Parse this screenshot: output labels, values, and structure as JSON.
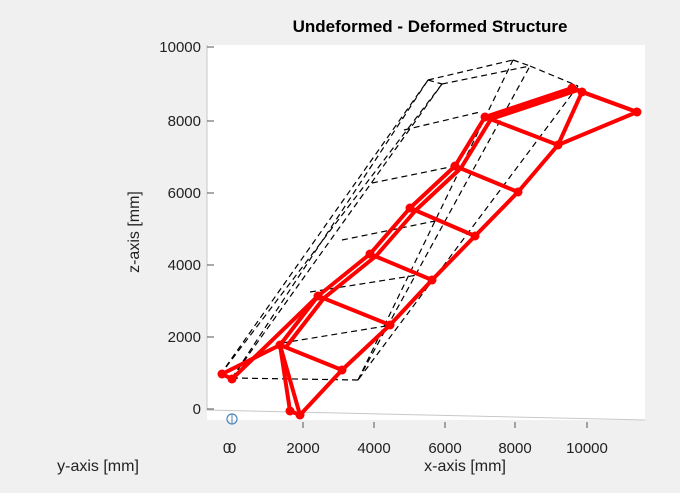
{
  "chart_data": {
    "type": "3d-wireframe",
    "title": "Undeformed - Deformed Structure",
    "xlabel": "x-axis [mm]",
    "ylabel": "y-axis [mm]",
    "zlabel": "z-axis [mm]",
    "x_ticks": [
      "2000",
      "4000",
      "6000",
      "8000",
      "10000"
    ],
    "y_ticks": [
      "0"
    ],
    "z_ticks": [
      "0",
      "2000",
      "4000",
      "6000",
      "8000",
      "10000"
    ],
    "zlim": [
      0,
      10000
    ],
    "colors": {
      "undeformed": "#000000",
      "deformed": "#ff0000",
      "origin_marker": "#4f86b8"
    },
    "series": [
      {
        "style": "dashed",
        "color": "#000000"
      },
      {
        "style": "solid-with-markers",
        "color": "#ff0000"
      }
    ]
  }
}
